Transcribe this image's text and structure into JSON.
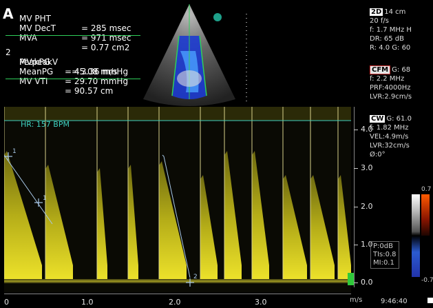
{
  "panel_letter": "A",
  "measurements_top": [
    {
      "key": "MV PHT",
      "value": "= 285 msec"
    },
    {
      "key": "MV DecT",
      "value": "= 971 msec"
    },
    {
      "key": "MVA",
      "value": "= 0.77 cm2"
    }
  ],
  "measurements_bottom_index": "2",
  "measurements_bottom": [
    {
      "key": "MVpeakV",
      "value": "= 3.36 m/s"
    },
    {
      "key": "PeakPG",
      "value": "= 45.08 mmHg"
    },
    {
      "key": "MeanPG",
      "value": "= 29.70 mmHg"
    },
    {
      "key": "MV VTI",
      "value": "= 90.57 cm"
    }
  ],
  "settings_2d": {
    "tag": "2D",
    "lines": [
      "14 cm",
      "20 f/s",
      "f: 1.7 MHz H",
      "DR: 65 dB",
      "R: 4.0   G: 60"
    ]
  },
  "settings_cfm": {
    "tag": "CFM",
    "lines": [
      "G: 68",
      "f: 2.2 MHz",
      "PRF:4000Hz",
      "LVR:2.9cm/s"
    ]
  },
  "settings_cw": {
    "tag": "CW",
    "lines": [
      "G: 61.0",
      "f: 1.82 MHz",
      "VEL:4.9m/s",
      "LVR:32cm/s",
      "Ø:0°"
    ]
  },
  "hr_label": "HR: 157 BPM",
  "ms_label": "ms",
  "y_axis": {
    "unit": "m/s",
    "ticks": [
      "4.0",
      "3.0",
      "2.0",
      "1.0",
      "0.0"
    ]
  },
  "x_axis": {
    "ticks": [
      "0",
      "1.0",
      "2.0",
      "3.0"
    ]
  },
  "marker_labels": [
    "1",
    "1",
    "2"
  ],
  "power_box": [
    "P:0dB",
    "TIs:0.8",
    "MI:0.1"
  ],
  "color_scale": {
    "top": "0.7",
    "bottom": "-0.7"
  },
  "time": "9:46:40",
  "colors": {
    "spectrum": "#e6d91f",
    "baseline": "#2fd05a",
    "hr_line": "#3fd0c0",
    "marker": "#a8c8e8"
  }
}
